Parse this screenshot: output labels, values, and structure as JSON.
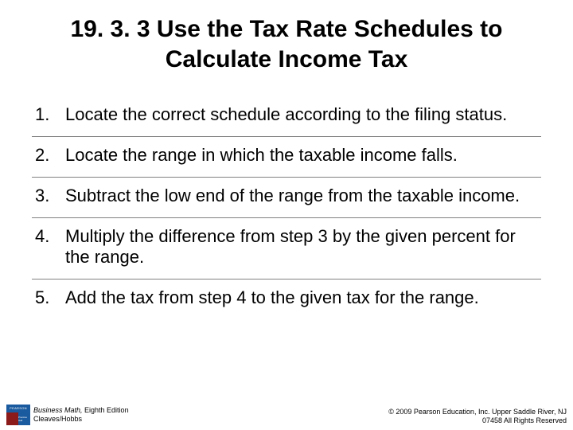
{
  "title": "19. 3. 3 Use the Tax Rate Schedules to Calculate Income Tax",
  "steps": [
    {
      "num": "1.",
      "text": "Locate the correct schedule according to the filing status."
    },
    {
      "num": "2.",
      "text": "Locate the range in which the taxable income falls."
    },
    {
      "num": "3.",
      "text": "Subtract the low end of the range from the taxable income."
    },
    {
      "num": "4.",
      "text": "Multiply the difference from step 3 by the given percent for the range."
    },
    {
      "num": "5.",
      "text": "Add the tax from step 4 to the given tax for the range."
    }
  ],
  "logo": {
    "top": "PEARSON",
    "bottom": "Prentice Hall"
  },
  "book": {
    "title": "Business Math,",
    "edition": " Eighth Edition",
    "authors": "Cleaves/Hobbs"
  },
  "copyright": {
    "line1": "© 2009 Pearson Education, Inc. Upper Saddle River, NJ",
    "line2": "07458  All Rights Reserved"
  },
  "colors": {
    "background": "#ffffff",
    "text": "#000000",
    "divider": "#808080",
    "logo_blue": "#1a5a9e",
    "logo_red": "#8b1a1a"
  }
}
